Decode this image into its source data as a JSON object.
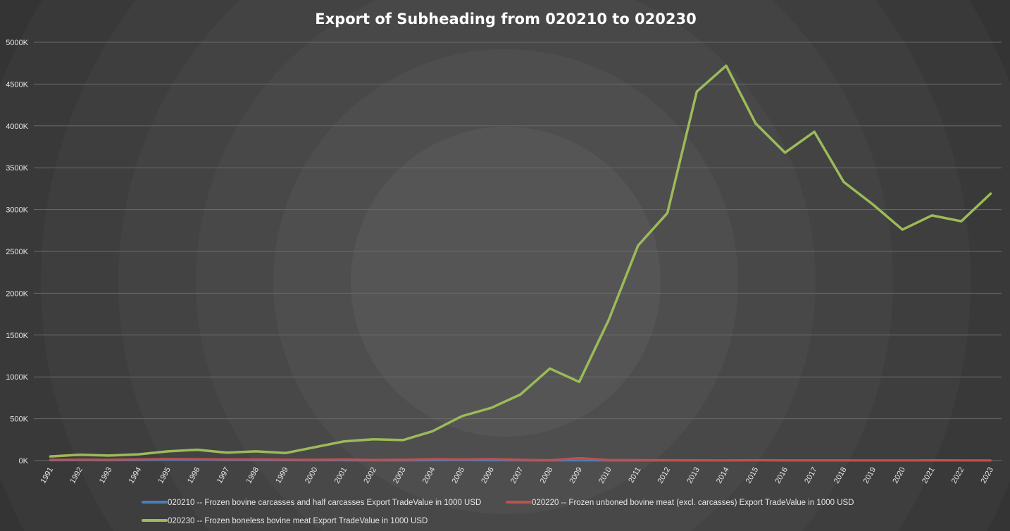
{
  "chart_data": {
    "type": "line",
    "title": "Export of Subheading from 020210 to 020230",
    "xlabel": "",
    "ylabel": "",
    "ylim": [
      0,
      5000000
    ],
    "yticks": [
      {
        "value": 0,
        "label": "0K"
      },
      {
        "value": 500000,
        "label": "500K"
      },
      {
        "value": 1000000,
        "label": "1000K"
      },
      {
        "value": 1500000,
        "label": "1500K"
      },
      {
        "value": 2000000,
        "label": "2000K"
      },
      {
        "value": 2500000,
        "label": "2500K"
      },
      {
        "value": 3000000,
        "label": "3000K"
      },
      {
        "value": 3500000,
        "label": "3500K"
      },
      {
        "value": 4000000,
        "label": "4000K"
      },
      {
        "value": 4500000,
        "label": "4500K"
      },
      {
        "value": 5000000,
        "label": "5000K"
      }
    ],
    "grid": true,
    "legend_position": "bottom",
    "categories": [
      "1991",
      "1992",
      "1993",
      "1994",
      "1995",
      "1996",
      "1997",
      "1998",
      "1999",
      "2000",
      "2001",
      "2002",
      "2003",
      "2004",
      "2005",
      "2006",
      "2007",
      "2008",
      "2009",
      "2010",
      "2011",
      "2012",
      "2013",
      "2014",
      "2015",
      "2016",
      "2017",
      "2018",
      "2019",
      "2020",
      "2021",
      "2022",
      "2023"
    ],
    "series": [
      {
        "name": "020210 -- Frozen bovine carcasses and half carcasses Export TradeValue in 1000 USD",
        "color": "#4a7ebb",
        "values": [
          3000,
          4000,
          3000,
          5000,
          8000,
          9000,
          6000,
          5000,
          4000,
          3000,
          3000,
          2000,
          2000,
          3000,
          4000,
          3000,
          2000,
          1000,
          2000,
          1000,
          1000,
          1000,
          1000,
          1000,
          2000,
          1000,
          1000,
          1000,
          1000,
          1000,
          1000,
          1000,
          1000
        ]
      },
      {
        "name": "020220 -- Frozen unboned bovine meat (excl. carcasses) Export TradeValue in 1000 USD",
        "color": "#c0504d",
        "values": [
          10000,
          12000,
          10000,
          14000,
          20000,
          18000,
          15000,
          14000,
          12000,
          10000,
          15000,
          8000,
          12000,
          18000,
          15000,
          20000,
          10000,
          5000,
          30000,
          8000,
          6000,
          5000,
          4000,
          3000,
          5000,
          3000,
          3000,
          3000,
          2000,
          2000,
          4000,
          3000,
          2000
        ]
      },
      {
        "name": "020230 -- Frozen boneless bovine meat Export TradeValue in 1000 USD",
        "color": "#9bbb59",
        "values": [
          50000,
          70000,
          60000,
          75000,
          110000,
          130000,
          95000,
          110000,
          90000,
          160000,
          230000,
          255000,
          245000,
          350000,
          530000,
          630000,
          790000,
          1100000,
          940000,
          1680000,
          2570000,
          2960000,
          4410000,
          4720000,
          4030000,
          3680000,
          3930000,
          3330000,
          3060000,
          2760000,
          2930000,
          2860000,
          3190000
        ]
      }
    ]
  }
}
